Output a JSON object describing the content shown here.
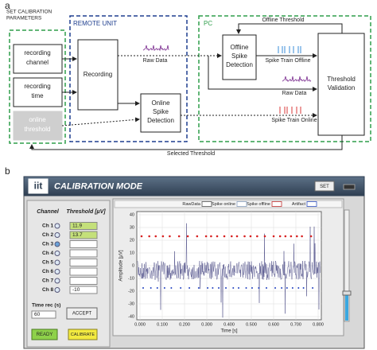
{
  "diagram": {
    "label": "a",
    "calibration": {
      "title_lines": [
        "SET CALIBRATION",
        "PARAMETERS"
      ],
      "items": [
        [
          "recording",
          "channel"
        ],
        [
          "recording",
          "time"
        ],
        [
          "online",
          "threshold"
        ]
      ]
    },
    "remote": {
      "title": "REMOTE UNIT",
      "recording": "Recording",
      "online": [
        "Online",
        "Spike",
        "Detection"
      ],
      "raw": "Raw Data"
    },
    "pc": {
      "title": "PC",
      "offline": [
        "Offline",
        "Spike",
        "Detection"
      ],
      "validation": [
        "Threshold",
        "Validation"
      ],
      "offline_threshold": "Offline Threshold",
      "spike_offline": "Spike Train Offline",
      "raw": "Raw Data",
      "spike_online": "Spike Train Online"
    },
    "selected": "Selected Threshold"
  },
  "screenshot": {
    "label": "b",
    "logo": "iit",
    "title": "CALIBRATION MODE",
    "set_button": "SET",
    "channel_header": "Channel",
    "threshold_header": "Threshold [µV]",
    "channels": [
      "Ch 1",
      "Ch 2",
      "Ch 3",
      "Ch 4",
      "Ch 5",
      "Ch 6",
      "Ch 7",
      "Ch 8"
    ],
    "thresholds": [
      "11.9",
      "13.7",
      null,
      null,
      null,
      null,
      null,
      "-10"
    ],
    "time_label": "Time rec (s)",
    "time_value": "60",
    "accept": "ACCEPT",
    "ready": "READY",
    "calibrate": "CALIBRATE",
    "legend": [
      "RawData",
      "Spike online",
      "Spike offline",
      "Artifact"
    ],
    "y_axis_label": "Amplitude [µV]",
    "x_axis_label": "Time [s]",
    "yticks": [
      "40",
      "30",
      "20",
      "10",
      "0",
      "-10",
      "-20",
      "-30",
      "-40"
    ],
    "xticks": [
      "0.000",
      "0.100",
      "0.200",
      "0.300",
      "0.400",
      "0.500",
      "0.600",
      "0.700",
      "0.800"
    ]
  }
}
